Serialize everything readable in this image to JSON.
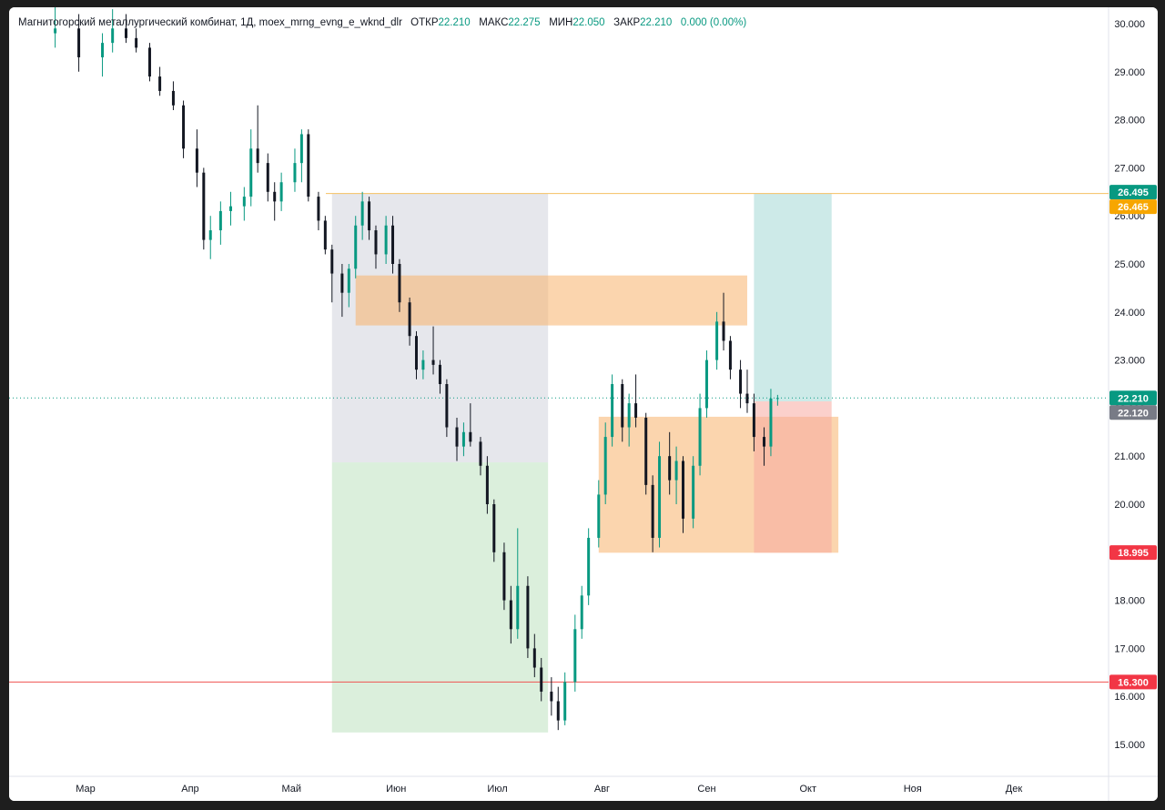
{
  "legend": {
    "symbol": "Магнитогорский металлургический комбинат, 1Д, moex_mrng_evng_e_wknd_dlr",
    "open_label": "ОТКР",
    "open_value": "22.210",
    "high_label": "МАКС",
    "high_value": "22.275",
    "low_label": "МИН",
    "low_value": "22.050",
    "close_label": "ЗАКР",
    "close_value": "22.210",
    "change": "0.000 (0.00%)"
  },
  "colors": {
    "up": "#089981",
    "down": "#131722",
    "grid_line": "#f0f3fa",
    "orange_line": "#f5c063",
    "red_line": "#ef5350",
    "tag_green": "#089981",
    "tag_orange": "#f7a600",
    "tag_gray": "#787b86",
    "tag_red": "#f23645"
  },
  "chart_data": {
    "type": "candlestick",
    "title": "",
    "y_ticks": [
      "30.000",
      "29.000",
      "28.000",
      "27.000",
      "26.000",
      "25.000",
      "24.000",
      "23.000",
      "22.000",
      "21.000",
      "20.000",
      "19.000",
      "18.000",
      "17.000",
      "16.000",
      "15.000"
    ],
    "x_ticks": [
      "Мар",
      "Апр",
      "Май",
      "Июн",
      "Июл",
      "Авг",
      "Сен",
      "Окт",
      "Ноя",
      "Дек"
    ],
    "ylim": [
      14.3,
      30.3
    ],
    "price_tags": [
      {
        "label": "26.495",
        "price": 26.495,
        "color": "green"
      },
      {
        "label": "26.465",
        "price": 26.465,
        "color": "orange"
      },
      {
        "label": "22.210",
        "price": 22.21,
        "color": "green"
      },
      {
        "label": "22.120",
        "price": 22.12,
        "color": "gray"
      },
      {
        "label": "18.995",
        "price": 18.995,
        "color": "red"
      },
      {
        "label": "16.300",
        "price": 16.3,
        "color": "red"
      }
    ],
    "horizontal_lines": [
      {
        "price": 26.465,
        "color": "orange"
      },
      {
        "price": 16.3,
        "color": "red"
      },
      {
        "price": 22.21,
        "color": "green-dotted"
      }
    ],
    "zones": [
      {
        "name": "gray-zone",
        "x0": "2023-05-13",
        "x1": "2023-07-16",
        "y0": 20.87,
        "y1": 26.46,
        "color": "#d1d4dc",
        "opacity": 0.55
      },
      {
        "name": "green-zone",
        "x0": "2023-05-13",
        "x1": "2023-07-16",
        "y0": 15.25,
        "y1": 20.87,
        "color": "#c8e6c9",
        "opacity": 0.65
      },
      {
        "name": "orange-band",
        "x0": "2023-05-20",
        "x1": "2023-09-13",
        "y0": 23.72,
        "y1": 24.76,
        "color": "#f7b36b",
        "opacity": 0.55
      },
      {
        "name": "orange-box",
        "x0": "2023-07-31",
        "x1": "2023-10-10",
        "y0": 18.99,
        "y1": 21.82,
        "color": "#f7b36b",
        "opacity": 0.55
      },
      {
        "name": "teal-zone",
        "x0": "2023-09-15",
        "x1": "2023-10-08",
        "y0": 22.14,
        "y1": 26.46,
        "color": "#b2dfdb",
        "opacity": 0.65
      },
      {
        "name": "red-zone",
        "x0": "2023-09-15",
        "x1": "2023-10-08",
        "y0": 18.99,
        "y1": 22.14,
        "color": "#f7a9a0",
        "opacity": 0.55
      }
    ],
    "series": [
      {
        "date": "2023-02-20",
        "o": 29.8,
        "h": 30.5,
        "l": 29.5,
        "c": 29.9
      },
      {
        "date": "2023-02-27",
        "o": 29.9,
        "h": 30.2,
        "l": 29.0,
        "c": 29.3
      },
      {
        "date": "2023-03-06",
        "o": 29.3,
        "h": 29.8,
        "l": 28.9,
        "c": 29.6
      },
      {
        "date": "2023-03-09",
        "o": 29.6,
        "h": 30.3,
        "l": 29.4,
        "c": 29.9
      },
      {
        "date": "2023-03-13",
        "o": 29.9,
        "h": 30.2,
        "l": 29.6,
        "c": 29.7
      },
      {
        "date": "2023-03-16",
        "o": 29.7,
        "h": 29.9,
        "l": 29.4,
        "c": 29.5
      },
      {
        "date": "2023-03-20",
        "o": 29.5,
        "h": 29.6,
        "l": 28.8,
        "c": 28.9
      },
      {
        "date": "2023-03-23",
        "o": 28.9,
        "h": 29.1,
        "l": 28.5,
        "c": 28.6
      },
      {
        "date": "2023-03-27",
        "o": 28.6,
        "h": 28.8,
        "l": 28.2,
        "c": 28.3
      },
      {
        "date": "2023-03-30",
        "o": 28.3,
        "h": 28.4,
        "l": 27.2,
        "c": 27.4
      },
      {
        "date": "2023-04-03",
        "o": 27.4,
        "h": 27.8,
        "l": 26.6,
        "c": 26.9
      },
      {
        "date": "2023-04-05",
        "o": 26.9,
        "h": 27.0,
        "l": 25.3,
        "c": 25.5
      },
      {
        "date": "2023-04-07",
        "o": 25.5,
        "h": 26.0,
        "l": 25.1,
        "c": 25.7
      },
      {
        "date": "2023-04-10",
        "o": 25.7,
        "h": 26.3,
        "l": 25.4,
        "c": 26.1
      },
      {
        "date": "2023-04-13",
        "o": 26.1,
        "h": 26.5,
        "l": 25.8,
        "c": 26.2
      },
      {
        "date": "2023-04-17",
        "o": 26.2,
        "h": 26.6,
        "l": 25.9,
        "c": 26.4
      },
      {
        "date": "2023-04-19",
        "o": 26.4,
        "h": 27.8,
        "l": 26.2,
        "c": 27.4
      },
      {
        "date": "2023-04-21",
        "o": 27.4,
        "h": 28.3,
        "l": 26.9,
        "c": 27.1
      },
      {
        "date": "2023-04-24",
        "o": 27.1,
        "h": 27.3,
        "l": 26.3,
        "c": 26.5
      },
      {
        "date": "2023-04-26",
        "o": 26.5,
        "h": 26.7,
        "l": 25.9,
        "c": 26.3
      },
      {
        "date": "2023-04-28",
        "o": 26.3,
        "h": 26.9,
        "l": 26.1,
        "c": 26.7
      },
      {
        "date": "2023-05-02",
        "o": 26.7,
        "h": 27.4,
        "l": 26.5,
        "c": 27.1
      },
      {
        "date": "2023-05-04",
        "o": 27.1,
        "h": 27.8,
        "l": 26.7,
        "c": 27.7
      },
      {
        "date": "2023-05-06",
        "o": 27.7,
        "h": 27.8,
        "l": 26.3,
        "c": 26.4
      },
      {
        "date": "2023-05-09",
        "o": 26.4,
        "h": 26.5,
        "l": 25.7,
        "c": 25.9
      },
      {
        "date": "2023-05-11",
        "o": 25.9,
        "h": 26.0,
        "l": 25.2,
        "c": 25.3
      },
      {
        "date": "2023-05-13",
        "o": 25.3,
        "h": 25.4,
        "l": 24.2,
        "c": 24.8
      },
      {
        "date": "2023-05-16",
        "o": 24.8,
        "h": 25.0,
        "l": 23.9,
        "c": 24.4
      },
      {
        "date": "2023-05-18",
        "o": 24.4,
        "h": 25.0,
        "l": 24.1,
        "c": 24.9
      },
      {
        "date": "2023-05-20",
        "o": 24.9,
        "h": 26.0,
        "l": 24.7,
        "c": 25.8
      },
      {
        "date": "2023-05-22",
        "o": 25.8,
        "h": 26.5,
        "l": 25.5,
        "c": 26.3
      },
      {
        "date": "2023-05-24",
        "o": 26.3,
        "h": 26.4,
        "l": 25.5,
        "c": 25.7
      },
      {
        "date": "2023-05-26",
        "o": 25.7,
        "h": 25.8,
        "l": 24.9,
        "c": 25.2
      },
      {
        "date": "2023-05-29",
        "o": 25.2,
        "h": 26.0,
        "l": 25.0,
        "c": 25.8
      },
      {
        "date": "2023-05-31",
        "o": 25.8,
        "h": 26.0,
        "l": 24.8,
        "c": 25.0
      },
      {
        "date": "2023-06-02",
        "o": 25.0,
        "h": 25.1,
        "l": 24.0,
        "c": 24.2
      },
      {
        "date": "2023-06-05",
        "o": 24.2,
        "h": 24.3,
        "l": 23.3,
        "c": 23.5
      },
      {
        "date": "2023-06-07",
        "o": 23.5,
        "h": 23.6,
        "l": 22.6,
        "c": 22.8
      },
      {
        "date": "2023-06-09",
        "o": 22.8,
        "h": 23.2,
        "l": 22.6,
        "c": 23.0
      },
      {
        "date": "2023-06-12",
        "o": 23.0,
        "h": 23.7,
        "l": 22.7,
        "c": 22.9
      },
      {
        "date": "2023-06-14",
        "o": 22.9,
        "h": 23.0,
        "l": 22.3,
        "c": 22.5
      },
      {
        "date": "2023-06-16",
        "o": 22.5,
        "h": 22.6,
        "l": 21.4,
        "c": 21.6
      },
      {
        "date": "2023-06-19",
        "o": 21.6,
        "h": 21.8,
        "l": 20.9,
        "c": 21.2
      },
      {
        "date": "2023-06-21",
        "o": 21.2,
        "h": 21.7,
        "l": 21.0,
        "c": 21.5
      },
      {
        "date": "2023-06-23",
        "o": 21.5,
        "h": 22.1,
        "l": 21.2,
        "c": 21.3
      },
      {
        "date": "2023-06-26",
        "o": 21.3,
        "h": 21.4,
        "l": 20.6,
        "c": 20.8
      },
      {
        "date": "2023-06-28",
        "o": 20.8,
        "h": 21.0,
        "l": 19.8,
        "c": 20.0
      },
      {
        "date": "2023-06-30",
        "o": 20.0,
        "h": 20.1,
        "l": 18.8,
        "c": 19.0
      },
      {
        "date": "2023-07-03",
        "o": 19.0,
        "h": 19.2,
        "l": 17.8,
        "c": 18.0
      },
      {
        "date": "2023-07-05",
        "o": 18.0,
        "h": 18.3,
        "l": 17.1,
        "c": 17.4
      },
      {
        "date": "2023-07-07",
        "o": 17.4,
        "h": 19.5,
        "l": 17.2,
        "c": 18.3
      },
      {
        "date": "2023-07-10",
        "o": 18.3,
        "h": 18.5,
        "l": 16.8,
        "c": 17.0
      },
      {
        "date": "2023-07-12",
        "o": 17.0,
        "h": 17.3,
        "l": 16.4,
        "c": 16.6
      },
      {
        "date": "2023-07-14",
        "o": 16.6,
        "h": 16.8,
        "l": 15.9,
        "c": 16.1
      },
      {
        "date": "2023-07-17",
        "o": 16.1,
        "h": 16.4,
        "l": 15.6,
        "c": 15.9
      },
      {
        "date": "2023-07-19",
        "o": 15.9,
        "h": 16.2,
        "l": 15.3,
        "c": 15.5
      },
      {
        "date": "2023-07-21",
        "o": 15.5,
        "h": 16.5,
        "l": 15.4,
        "c": 16.3
      },
      {
        "date": "2023-07-24",
        "o": 16.3,
        "h": 17.7,
        "l": 16.1,
        "c": 17.4
      },
      {
        "date": "2023-07-26",
        "o": 17.4,
        "h": 18.3,
        "l": 17.2,
        "c": 18.1
      },
      {
        "date": "2023-07-28",
        "o": 18.1,
        "h": 19.5,
        "l": 17.9,
        "c": 19.3
      },
      {
        "date": "2023-07-31",
        "o": 19.3,
        "h": 20.5,
        "l": 19.1,
        "c": 20.2
      },
      {
        "date": "2023-08-02",
        "o": 20.2,
        "h": 21.7,
        "l": 20.0,
        "c": 21.4
      },
      {
        "date": "2023-08-04",
        "o": 21.4,
        "h": 22.7,
        "l": 21.2,
        "c": 22.5
      },
      {
        "date": "2023-08-07",
        "o": 22.5,
        "h": 22.6,
        "l": 21.3,
        "c": 21.6
      },
      {
        "date": "2023-08-09",
        "o": 21.6,
        "h": 22.3,
        "l": 21.2,
        "c": 22.1
      },
      {
        "date": "2023-08-11",
        "o": 22.1,
        "h": 22.7,
        "l": 21.6,
        "c": 21.8
      },
      {
        "date": "2023-08-14",
        "o": 21.8,
        "h": 21.9,
        "l": 20.2,
        "c": 20.4
      },
      {
        "date": "2023-08-16",
        "o": 20.4,
        "h": 20.6,
        "l": 19.0,
        "c": 19.3
      },
      {
        "date": "2023-08-18",
        "o": 19.3,
        "h": 21.3,
        "l": 19.1,
        "c": 21.0
      },
      {
        "date": "2023-08-21",
        "o": 21.0,
        "h": 21.5,
        "l": 20.2,
        "c": 20.5
      },
      {
        "date": "2023-08-23",
        "o": 20.5,
        "h": 21.2,
        "l": 20.0,
        "c": 20.9
      },
      {
        "date": "2023-08-25",
        "o": 20.9,
        "h": 21.0,
        "l": 19.4,
        "c": 19.7
      },
      {
        "date": "2023-08-28",
        "o": 19.7,
        "h": 21.0,
        "l": 19.5,
        "c": 20.8
      },
      {
        "date": "2023-08-30",
        "o": 20.8,
        "h": 22.3,
        "l": 20.6,
        "c": 22.0
      },
      {
        "date": "2023-09-01",
        "o": 22.0,
        "h": 23.2,
        "l": 21.8,
        "c": 23.0
      },
      {
        "date": "2023-09-04",
        "o": 23.0,
        "h": 24.0,
        "l": 22.8,
        "c": 23.8
      },
      {
        "date": "2023-09-06",
        "o": 23.8,
        "h": 24.4,
        "l": 23.2,
        "c": 23.4
      },
      {
        "date": "2023-09-08",
        "o": 23.4,
        "h": 23.5,
        "l": 22.6,
        "c": 22.8
      },
      {
        "date": "2023-09-11",
        "o": 22.8,
        "h": 23.0,
        "l": 22.0,
        "c": 22.3
      },
      {
        "date": "2023-09-13",
        "o": 22.3,
        "h": 22.8,
        "l": 21.9,
        "c": 22.1
      },
      {
        "date": "2023-09-15",
        "o": 22.1,
        "h": 22.3,
        "l": 21.1,
        "c": 21.4
      },
      {
        "date": "2023-09-18",
        "o": 21.4,
        "h": 21.6,
        "l": 20.8,
        "c": 21.2
      },
      {
        "date": "2023-09-20",
        "o": 21.2,
        "h": 22.4,
        "l": 21.0,
        "c": 22.2
      },
      {
        "date": "2023-09-22",
        "o": 22.21,
        "h": 22.275,
        "l": 22.05,
        "c": 22.21
      }
    ]
  }
}
